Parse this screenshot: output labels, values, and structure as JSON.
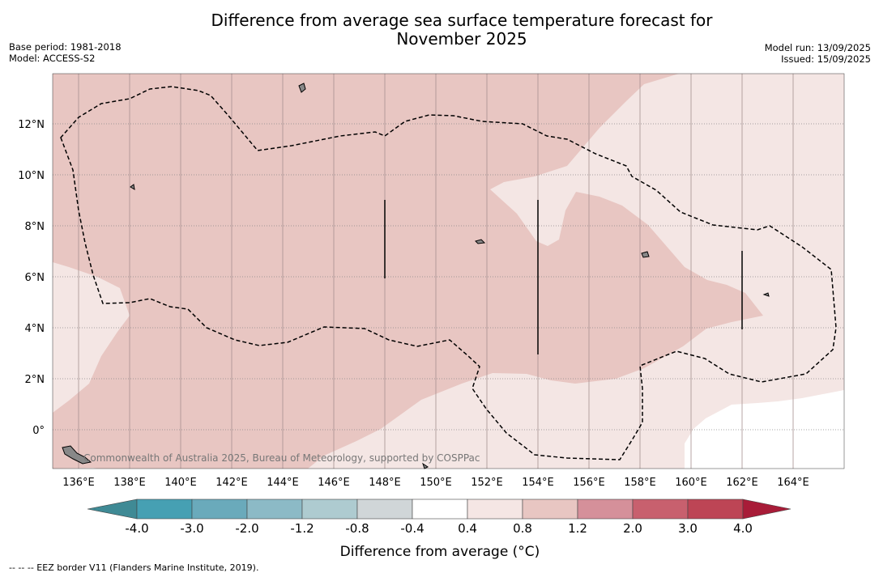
{
  "title": {
    "line1": "Difference from average sea surface temperature forecast for",
    "line2": "November 2025"
  },
  "info_left": {
    "base_period": "Base period: 1981-2018",
    "model": "Model: ACCESS-S2"
  },
  "info_right": {
    "model_run": "Model run: 13/09/2025",
    "issued": "Issued: 15/09/2025"
  },
  "map": {
    "lon_range": [
      135,
      166
    ],
    "lat_range": [
      -1.5,
      14
    ],
    "lon_ticks": [
      {
        "value": 136,
        "label": "136°E"
      },
      {
        "value": 138,
        "label": "138°E"
      },
      {
        "value": 140,
        "label": "140°E"
      },
      {
        "value": 142,
        "label": "142°E"
      },
      {
        "value": 144,
        "label": "144°E"
      },
      {
        "value": 146,
        "label": "146°E"
      },
      {
        "value": 148,
        "label": "148°E"
      },
      {
        "value": 150,
        "label": "150°E"
      },
      {
        "value": 152,
        "label": "152°E"
      },
      {
        "value": 154,
        "label": "154°E"
      },
      {
        "value": 156,
        "label": "156°E"
      },
      {
        "value": 158,
        "label": "158°E"
      },
      {
        "value": 160,
        "label": "160°E"
      },
      {
        "value": 162,
        "label": "162°E"
      },
      {
        "value": 164,
        "label": "164°E"
      }
    ],
    "lat_ticks": [
      {
        "value": 0,
        "label": "0°"
      },
      {
        "value": 2,
        "label": "2°N"
      },
      {
        "value": 4,
        "label": "4°N"
      },
      {
        "value": 6,
        "label": "6°N"
      },
      {
        "value": 8,
        "label": "8°N"
      },
      {
        "value": 10,
        "label": "10°N"
      },
      {
        "value": 12,
        "label": "12°N"
      }
    ],
    "credit": "Commonwealth of Australia 2025, Bureau of Meteorology, supported by COSPPac",
    "colors": {
      "anomaly_0.8_1.2": "#e8c6c2",
      "anomaly_0.4_0.8": "#f4e6e4",
      "anomaly_-0.4_0.4": "#ffffff",
      "eez_line": "#000000",
      "land": "#888888"
    }
  },
  "colorbar": {
    "title": "Difference from average (°C)",
    "labels": [
      "-4.0",
      "-3.0",
      "-2.0",
      "-1.2",
      "-0.8",
      "-0.4",
      "0.4",
      "0.8",
      "1.2",
      "2.0",
      "3.0",
      "4.0"
    ],
    "colors": [
      "#46a0b3",
      "#6aaabb",
      "#8cbac6",
      "#aecbd0",
      "#d0d6d8",
      "#ffffff",
      "#f5e6e4",
      "#e8c6c2",
      "#d5909a",
      "#c8606e",
      "#bd4555"
    ],
    "under_color": "#3f8a95",
    "over_color": "#a81c38"
  },
  "footer": "--  --  -- EEZ border V11 (Flanders Marine Institute, 2019)."
}
